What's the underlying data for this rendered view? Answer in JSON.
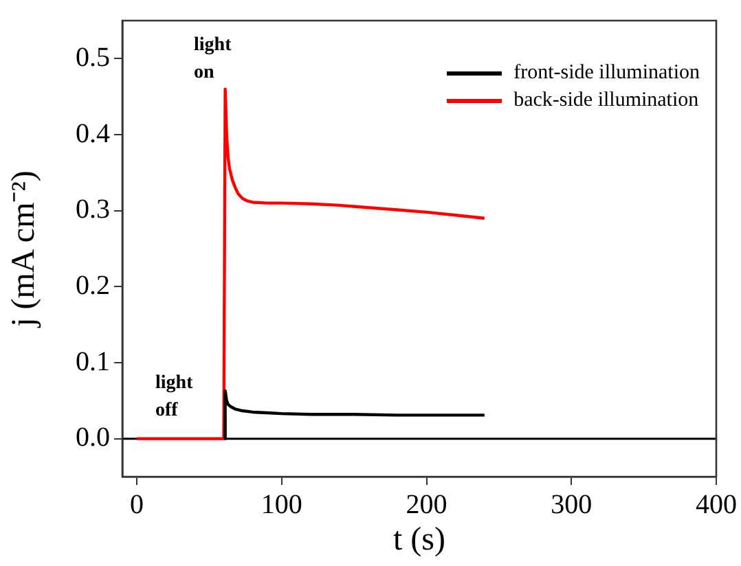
{
  "chart_data": {
    "type": "line",
    "xlabel": "t (s)",
    "ylabel": "j (mA cm⁻²)",
    "xlim": [
      -10,
      400
    ],
    "xticks": [
      0,
      100,
      200,
      300,
      400
    ],
    "ylim": [
      -0.05,
      0.55
    ],
    "yticks": [
      {
        "value": 0,
        "label": "0.0"
      },
      {
        "value": 0.1,
        "label": "0.1"
      },
      {
        "value": 0.2,
        "label": "0.2"
      },
      {
        "value": 0.3,
        "label": "0.3"
      },
      {
        "value": 0.4,
        "label": "0.4"
      },
      {
        "value": 0.5,
        "label": "0.5"
      }
    ],
    "legend": "top right",
    "ref_lines": [
      {
        "axis": "y",
        "value": 0,
        "color": "#000000"
      }
    ],
    "annotations": [
      "light on",
      "light off"
    ],
    "series": [
      {
        "name": "front-side illumination",
        "color": "#000000",
        "x": [
          60.5,
          61,
          62,
          63,
          65,
          68,
          72,
          80,
          90,
          100,
          120,
          150,
          180,
          210,
          240
        ],
        "values": [
          0,
          0.063,
          0.05,
          0.045,
          0.042,
          0.039,
          0.037,
          0.035,
          0.034,
          0.033,
          0.032,
          0.032,
          0.031,
          0.031,
          0.031
        ]
      },
      {
        "name": "back-side illumination",
        "color": "#ff0000",
        "x": [
          0,
          20,
          40,
          60,
          61,
          62,
          63,
          64,
          66,
          68,
          70,
          73,
          76,
          80,
          90,
          100,
          120,
          140,
          160,
          180,
          200,
          220,
          240
        ],
        "values": [
          0,
          0,
          0,
          0,
          0.46,
          0.4,
          0.37,
          0.355,
          0.34,
          0.33,
          0.322,
          0.316,
          0.313,
          0.311,
          0.31,
          0.31,
          0.309,
          0.307,
          0.304,
          0.301,
          0.298,
          0.294,
          0.29
        ]
      }
    ]
  }
}
